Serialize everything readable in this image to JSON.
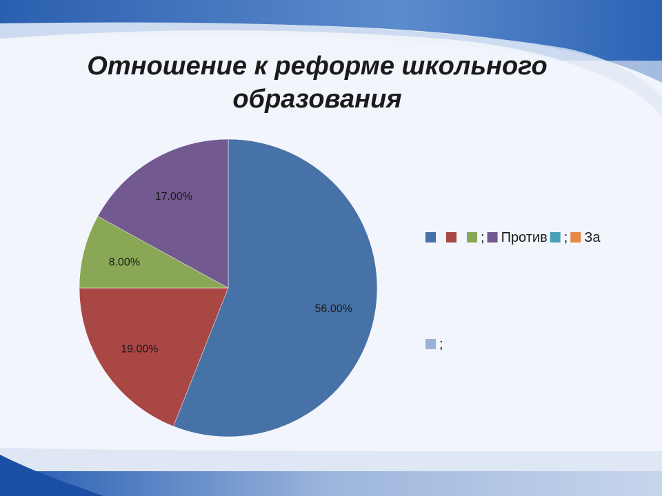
{
  "slide": {
    "title": "Отношение к реформе школьного образования"
  },
  "chart_data": {
    "type": "pie",
    "title": "Отношение к реформе школьного образования",
    "start_angle_deg": 0,
    "direction": "clockwise",
    "slices": [
      {
        "value": 56.0,
        "label": "56.00%",
        "color": "#4672a7"
      },
      {
        "value": 19.0,
        "label": "19.00%",
        "color": "#a84744"
      },
      {
        "value": 8.0,
        "label": "8.00%",
        "color": "#8aa755"
      },
      {
        "value": 17.0,
        "label": "17.00%",
        "color": "#725a91"
      }
    ],
    "legend": {
      "placement": "right",
      "row1": [
        {
          "color": "#4672a7",
          "text": ""
        },
        {
          "color": "#a84744",
          "text": ""
        },
        {
          "color": "#8aa755",
          "text": ";"
        },
        {
          "color": "#725a91",
          "text": "Против"
        },
        {
          "color": "#4aa0b8",
          "text": ";"
        },
        {
          "color": "#e48a45",
          "text": "За"
        }
      ],
      "row2": [
        {
          "color": "#9bb2d6",
          "text": ";"
        }
      ]
    }
  }
}
